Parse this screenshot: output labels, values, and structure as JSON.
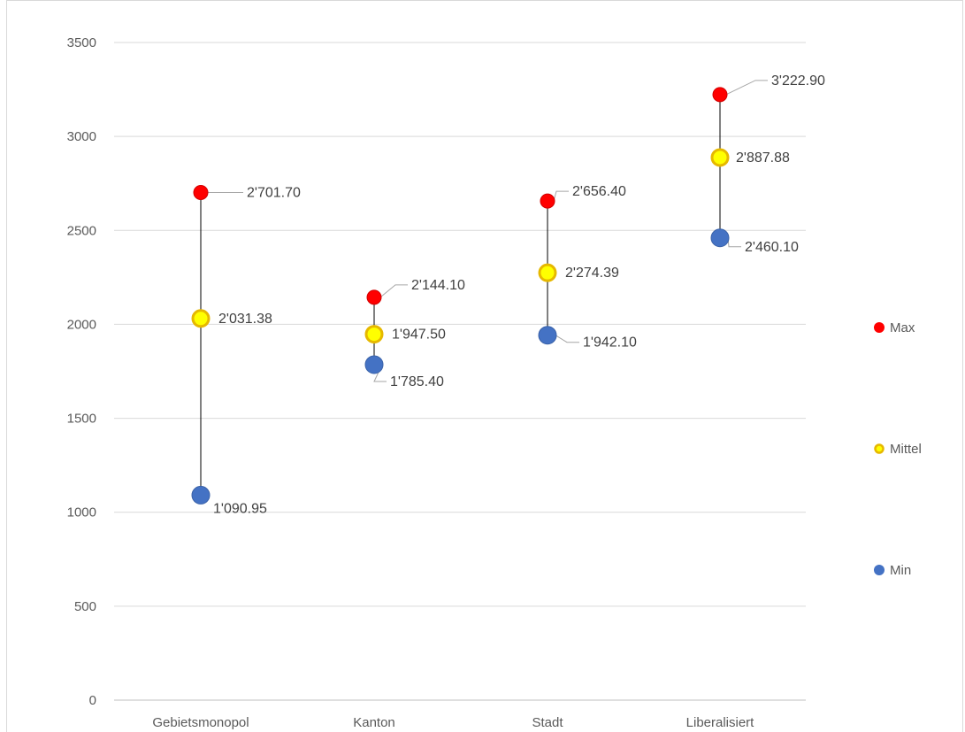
{
  "chart_data": {
    "type": "scatter",
    "ylim": [
      0,
      3500
    ],
    "y_ticks": [
      "0",
      "500",
      "1000",
      "1500",
      "2000",
      "2500",
      "3000",
      "3500"
    ],
    "grid": true,
    "legend_position": "right",
    "categories": [
      "Gebietsmonopol",
      "Kanton",
      "Stadt",
      "Liberalisiert"
    ],
    "series": [
      {
        "name": "Max",
        "color": "#ff0000",
        "values": [
          2701.7,
          2144.1,
          2656.4,
          3222.9
        ],
        "labels": [
          "2'701.70",
          "2'144.10",
          "2'656.40",
          "3'222.90"
        ]
      },
      {
        "name": "Mittel",
        "color": "#ffff00",
        "edge_color": "#e6b800",
        "values": [
          2031.38,
          1947.5,
          2274.39,
          2887.88
        ],
        "labels": [
          "2'031.38",
          "1'947.50",
          "2'274.39",
          "2'887.88"
        ]
      },
      {
        "name": "Min",
        "color": "#4472c4",
        "values": [
          1090.95,
          1785.4,
          1942.1,
          2460.1
        ],
        "labels": [
          "1'090.95",
          "1'785.40",
          "1'942.10",
          "2'460.10"
        ]
      }
    ]
  }
}
